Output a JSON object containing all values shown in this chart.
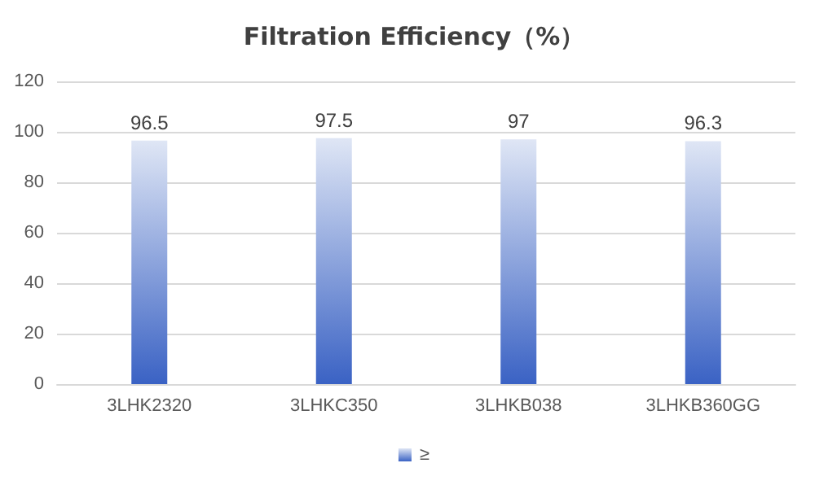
{
  "chart_data": {
    "type": "bar",
    "title": "Filtration Efficiency（%）",
    "categories": [
      "3LHK2320",
      "3LHKC350",
      "3LHKB038",
      "3LHKB360GG"
    ],
    "series": [
      {
        "name": "≥",
        "color": "#3a62c4",
        "values": [
          96.5,
          97.5,
          97,
          96.3
        ]
      }
    ],
    "ylim": [
      0,
      120
    ],
    "yticks": [
      0,
      20,
      40,
      60,
      80,
      100,
      120
    ],
    "grid": "y",
    "legend": "bottom",
    "data_labels": true
  }
}
